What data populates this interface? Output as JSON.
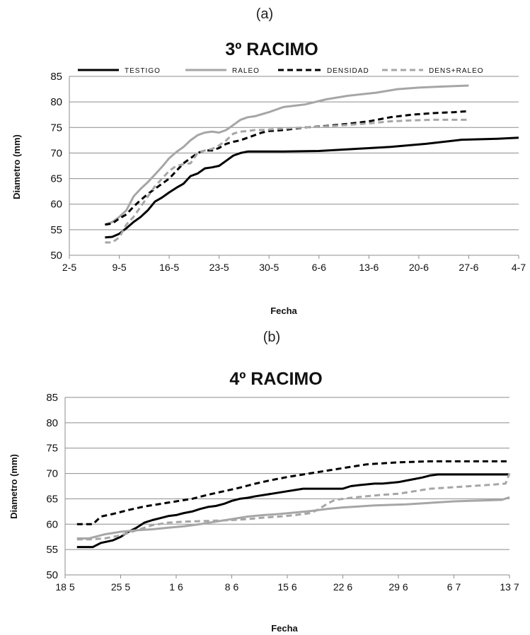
{
  "chart_data": [
    {
      "type": "line",
      "panel_label": "(a)",
      "title": "3º RACIMO",
      "xlabel": "Fecha",
      "ylabel": "Diametro (mm)",
      "ylim": [
        50,
        85
      ],
      "yticks": [
        50,
        55,
        60,
        65,
        70,
        75,
        80,
        85
      ],
      "xlim": [
        0,
        63
      ],
      "xticks": [
        {
          "label": "2-5",
          "day": 0
        },
        {
          "label": "9-5",
          "day": 7
        },
        {
          "label": "16-5",
          "day": 14
        },
        {
          "label": "23-5",
          "day": 21
        },
        {
          "label": "30-5",
          "day": 28
        },
        {
          "label": "6-6",
          "day": 35
        },
        {
          "label": "13-6",
          "day": 42
        },
        {
          "label": "20-6",
          "day": 49
        },
        {
          "label": "27-6",
          "day": 56
        },
        {
          "label": "4-7",
          "day": 63
        }
      ],
      "legend_position": "top",
      "grid": "horizontal",
      "series": [
        {
          "name": "TESTIGO",
          "color": "#000000",
          "dash": "solid",
          "x": [
            5,
            6,
            7,
            8,
            9,
            10,
            11,
            12,
            13,
            14,
            15,
            16,
            17,
            18,
            19,
            20,
            21,
            22,
            23,
            24,
            25,
            26,
            27,
            28,
            30,
            35,
            40,
            45,
            50,
            55,
            60,
            63
          ],
          "y": [
            53.5,
            53.6,
            54.2,
            55.3,
            56.5,
            57.5,
            58.8,
            60.5,
            61.3,
            62.3,
            63.2,
            64.0,
            65.5,
            66.0,
            67.0,
            67.2,
            67.5,
            68.5,
            69.5,
            70.0,
            70.3,
            70.3,
            70.3,
            70.3,
            70.3,
            70.4,
            70.8,
            71.2,
            71.8,
            72.6,
            72.8,
            73.0
          ]
        },
        {
          "name": "RALEO",
          "color": "#a6a6a6",
          "dash": "solid",
          "x": [
            5,
            6,
            7,
            8,
            9,
            10,
            11,
            12,
            13,
            14,
            15,
            16,
            17,
            18,
            19,
            20,
            21,
            22,
            23,
            24,
            25,
            26,
            27,
            28,
            30,
            33,
            36,
            39,
            41,
            43,
            46,
            49,
            52,
            56
          ],
          "y": [
            56.0,
            56.5,
            57.5,
            58.8,
            61.5,
            63.0,
            64.3,
            65.8,
            67.3,
            69.0,
            70.2,
            71.2,
            72.5,
            73.5,
            74.0,
            74.2,
            74.0,
            74.5,
            75.5,
            76.5,
            77.0,
            77.2,
            77.6,
            78.0,
            79.0,
            79.5,
            80.5,
            81.2,
            81.5,
            81.8,
            82.5,
            82.8,
            83.0,
            83.2
          ]
        },
        {
          "name": "DENSIDAD",
          "color": "#000000",
          "dash": "dashed",
          "x": [
            5,
            6,
            7,
            8,
            9,
            10,
            11,
            12,
            13,
            14,
            15,
            16,
            17,
            18,
            19,
            20,
            21,
            22,
            23,
            24,
            25,
            26,
            27,
            28,
            30,
            33,
            36,
            39,
            42,
            45,
            48,
            51,
            54,
            56
          ],
          "y": [
            56.0,
            56.2,
            57.2,
            58.0,
            59.5,
            60.8,
            62.0,
            63.0,
            64.0,
            65.0,
            66.5,
            68.0,
            69.0,
            70.0,
            70.5,
            70.5,
            71.0,
            71.8,
            72.2,
            72.5,
            73.0,
            73.5,
            74.0,
            74.3,
            74.5,
            75.0,
            75.3,
            75.7,
            76.2,
            77.0,
            77.5,
            77.8,
            78.0,
            78.2
          ]
        },
        {
          "name": "DENS+RALEO",
          "color": "#a6a6a6",
          "dash": "dashed",
          "x": [
            5,
            6,
            7,
            8,
            9,
            10,
            11,
            12,
            13,
            14,
            15,
            16,
            17,
            18,
            19,
            20,
            21,
            22,
            23,
            24,
            25,
            26,
            27,
            28,
            30,
            33,
            36,
            39,
            42,
            45,
            48,
            51,
            54,
            56
          ],
          "y": [
            52.5,
            52.5,
            53.5,
            56.0,
            57.5,
            59.5,
            61.5,
            63.5,
            65.0,
            66.5,
            67.5,
            67.8,
            68.0,
            70.0,
            70.5,
            70.8,
            71.5,
            72.5,
            73.8,
            74.2,
            74.3,
            74.5,
            74.5,
            74.6,
            74.8,
            75.0,
            75.2,
            75.5,
            75.8,
            76.2,
            76.4,
            76.5,
            76.5,
            76.5
          ]
        }
      ]
    },
    {
      "type": "line",
      "panel_label": "(b)",
      "title": "4º RACIMO",
      "xlabel": "Fecha",
      "ylabel": "Diametro (mm)",
      "ylim": [
        50,
        85
      ],
      "yticks": [
        50,
        55,
        60,
        65,
        70,
        75,
        80,
        85
      ],
      "xlim": [
        0,
        56
      ],
      "xticks": [
        {
          "label": "18 5",
          "day": 0
        },
        {
          "label": "25 5",
          "day": 7
        },
        {
          "label": "1 6",
          "day": 14
        },
        {
          "label": "8 6",
          "day": 21
        },
        {
          "label": "15 6",
          "day": 28
        },
        {
          "label": "22 6",
          "day": 35
        },
        {
          "label": "29 6",
          "day": 42
        },
        {
          "label": "6 7",
          "day": 49
        },
        {
          "label": "13 7",
          "day": 56
        }
      ],
      "grid": "horizontal",
      "series": [
        {
          "name": "TESTIGO",
          "color": "#000000",
          "dash": "solid",
          "x": [
            1.5,
            3,
            3.5,
            4.5,
            6,
            7,
            8,
            9,
            10,
            11,
            12,
            13,
            14,
            15,
            16,
            17,
            18,
            19,
            20,
            21,
            22,
            23,
            24,
            26,
            28,
            30,
            33,
            35,
            36,
            37,
            39,
            40,
            42,
            43,
            44,
            45,
            46,
            47,
            48,
            52,
            56
          ],
          "y": [
            55.5,
            55.5,
            55.5,
            56.3,
            56.8,
            57.5,
            58.5,
            59.3,
            60.3,
            60.8,
            61.2,
            61.6,
            61.8,
            62.2,
            62.5,
            63.0,
            63.4,
            63.6,
            64.0,
            64.6,
            65.0,
            65.2,
            65.5,
            66.0,
            66.5,
            67.0,
            67.0,
            67.0,
            67.5,
            67.7,
            68.0,
            68.0,
            68.3,
            68.6,
            68.9,
            69.2,
            69.6,
            69.8,
            69.8,
            69.8,
            69.8
          ]
        },
        {
          "name": "RALEO",
          "color": "#a6a6a6",
          "dash": "solid",
          "x": [
            1.5,
            3,
            5,
            7,
            9,
            11,
            13,
            15,
            17,
            19,
            21,
            23,
            25,
            27,
            29,
            31,
            33,
            35,
            37,
            39,
            41,
            43,
            45,
            47,
            49,
            51,
            53,
            55,
            56
          ],
          "y": [
            57.2,
            57.2,
            58.0,
            58.5,
            58.8,
            59.0,
            59.3,
            59.6,
            60.0,
            60.5,
            61.0,
            61.5,
            61.8,
            62.0,
            62.3,
            62.6,
            63.0,
            63.3,
            63.5,
            63.7,
            63.8,
            63.9,
            64.1,
            64.3,
            64.5,
            64.6,
            64.7,
            64.8,
            65.3
          ]
        },
        {
          "name": "DENSIDAD",
          "color": "#000000",
          "dash": "dashed",
          "x": [
            1.5,
            3,
            3.5,
            4.5,
            6,
            8,
            10,
            12,
            14,
            16,
            18,
            20,
            22,
            24,
            26,
            28,
            30,
            32,
            34,
            36,
            38,
            40,
            42,
            44,
            46,
            48,
            50,
            52,
            54,
            56
          ],
          "y": [
            60.0,
            60.0,
            60.0,
            61.5,
            62.0,
            62.8,
            63.5,
            64.0,
            64.5,
            65.0,
            65.8,
            66.5,
            67.2,
            68.0,
            68.7,
            69.3,
            69.8,
            70.3,
            70.8,
            71.3,
            71.8,
            72.0,
            72.2,
            72.3,
            72.4,
            72.4,
            72.4,
            72.4,
            72.4,
            72.4
          ]
        },
        {
          "name": "DENS+RALEO",
          "color": "#a6a6a6",
          "dash": "dashed",
          "x": [
            1.5,
            3,
            5,
            7,
            9,
            11,
            13,
            15,
            17,
            19,
            21,
            23,
            25,
            27,
            29,
            31,
            32,
            33,
            34,
            36,
            38,
            40,
            42,
            44,
            46,
            48,
            50,
            52,
            54,
            55.5,
            56
          ],
          "y": [
            57.0,
            57.0,
            57.2,
            57.8,
            58.8,
            59.8,
            60.3,
            60.5,
            60.6,
            60.7,
            60.8,
            61.0,
            61.3,
            61.5,
            61.8,
            62.2,
            63.0,
            64.0,
            64.8,
            65.2,
            65.5,
            65.8,
            66.0,
            66.5,
            67.0,
            67.2,
            67.4,
            67.6,
            67.8,
            68.0,
            70.0
          ]
        }
      ]
    }
  ]
}
